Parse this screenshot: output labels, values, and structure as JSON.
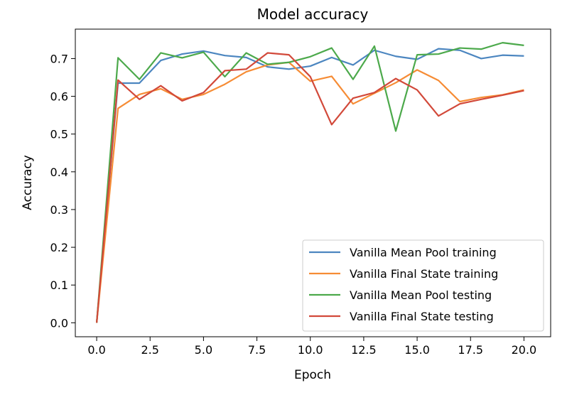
{
  "chart_data": {
    "type": "line",
    "title": "Model accuracy",
    "xlabel": "Epoch",
    "ylabel": "Accuracy",
    "xlim": [
      -1.0,
      21.25
    ],
    "ylim": [
      -0.037,
      0.778
    ],
    "xticks": [
      0.0,
      2.5,
      5.0,
      7.5,
      10.0,
      12.5,
      15.0,
      17.5,
      20.0
    ],
    "xtick_labels": [
      "0.0",
      "2.5",
      "5.0",
      "7.5",
      "10.0",
      "12.5",
      "15.0",
      "17.5",
      "20.0"
    ],
    "yticks": [
      0.0,
      0.1,
      0.2,
      0.3,
      0.4,
      0.5,
      0.6,
      0.7
    ],
    "ytick_labels": [
      "0.0",
      "0.1",
      "0.2",
      "0.3",
      "0.4",
      "0.5",
      "0.6",
      "0.7"
    ],
    "grid": false,
    "legend_position": "lower right",
    "x": [
      0,
      1,
      2,
      3,
      4,
      5,
      6,
      7,
      8,
      9,
      10,
      11,
      12,
      13,
      14,
      15,
      16,
      17,
      18,
      19,
      20
    ],
    "series": [
      {
        "name": "Vanilla Mean Pool training",
        "color": "#4c86c0",
        "values": [
          0.0,
          0.635,
          0.635,
          0.695,
          0.712,
          0.72,
          0.708,
          0.703,
          0.678,
          0.672,
          0.68,
          0.703,
          0.683,
          0.722,
          0.706,
          0.698,
          0.726,
          0.722,
          0.7,
          0.709,
          0.707
        ]
      },
      {
        "name": "Vanilla Final State training",
        "color": "#f68c35",
        "values": [
          0.0,
          0.568,
          0.605,
          0.62,
          0.592,
          0.605,
          0.632,
          0.665,
          0.683,
          0.69,
          0.64,
          0.653,
          0.58,
          0.608,
          0.636,
          0.67,
          0.642,
          0.586,
          0.597,
          0.604,
          0.617
        ]
      },
      {
        "name": "Vanilla Mean Pool testing",
        "color": "#4ca94b",
        "values": [
          0.0,
          0.702,
          0.645,
          0.715,
          0.702,
          0.717,
          0.652,
          0.715,
          0.685,
          0.69,
          0.705,
          0.728,
          0.645,
          0.733,
          0.508,
          0.71,
          0.712,
          0.728,
          0.725,
          0.742,
          0.735
        ]
      },
      {
        "name": "Vanilla Final State testing",
        "color": "#d2493a",
        "values": [
          0.0,
          0.643,
          0.592,
          0.628,
          0.588,
          0.61,
          0.668,
          0.672,
          0.715,
          0.71,
          0.652,
          0.525,
          0.595,
          0.61,
          0.647,
          0.617,
          0.548,
          0.58,
          0.592,
          0.603,
          0.615
        ]
      }
    ]
  }
}
